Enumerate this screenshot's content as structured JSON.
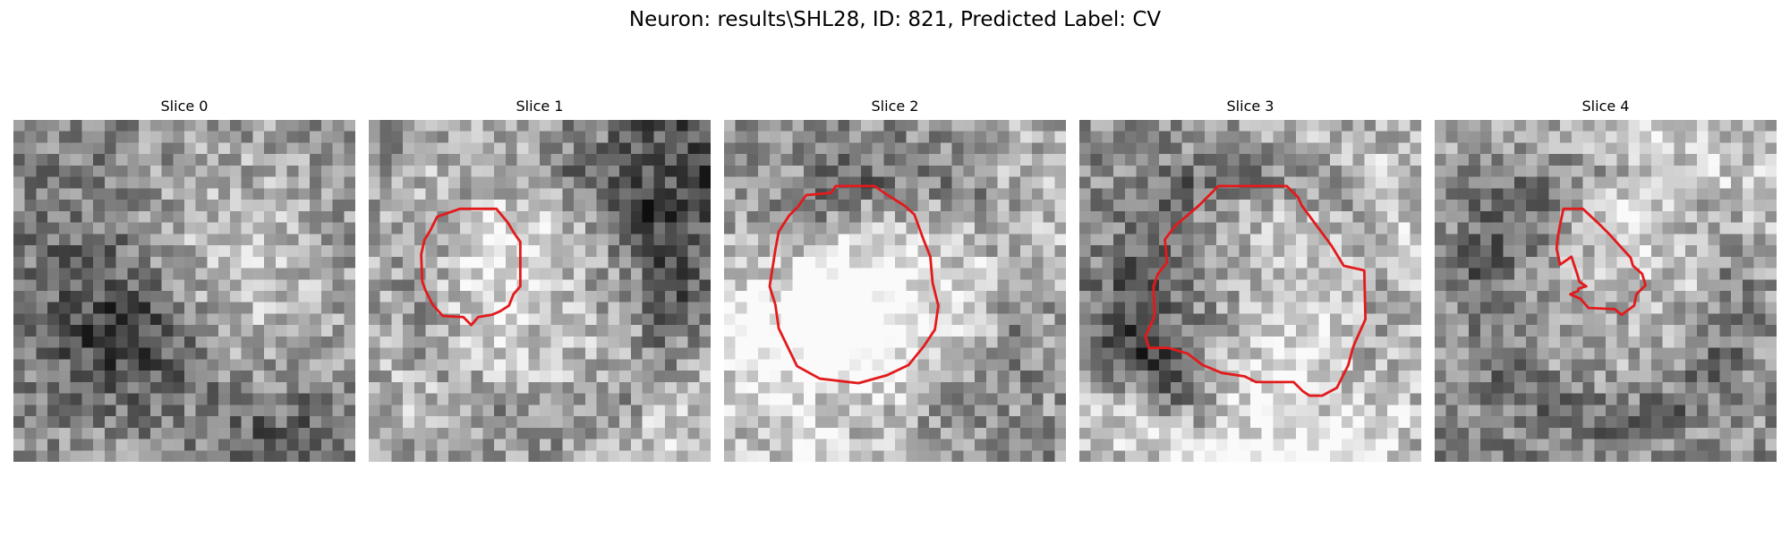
{
  "figure": {
    "title": "Neuron: results\\SHL28, ID: 821, Predicted Label: CV",
    "contour_color": "#e31a1c",
    "colormap": "gray",
    "panels": [
      {
        "title": "Slice 0",
        "has_contour": false,
        "texture_seed": 11
      },
      {
        "title": "Slice 1",
        "has_contour": true,
        "texture_seed": 23
      },
      {
        "title": "Slice 2",
        "has_contour": true,
        "texture_seed": 37
      },
      {
        "title": "Slice 3",
        "has_contour": true,
        "texture_seed": 53
      },
      {
        "title": "Slice 4",
        "has_contour": true,
        "texture_seed": 71
      }
    ]
  }
}
